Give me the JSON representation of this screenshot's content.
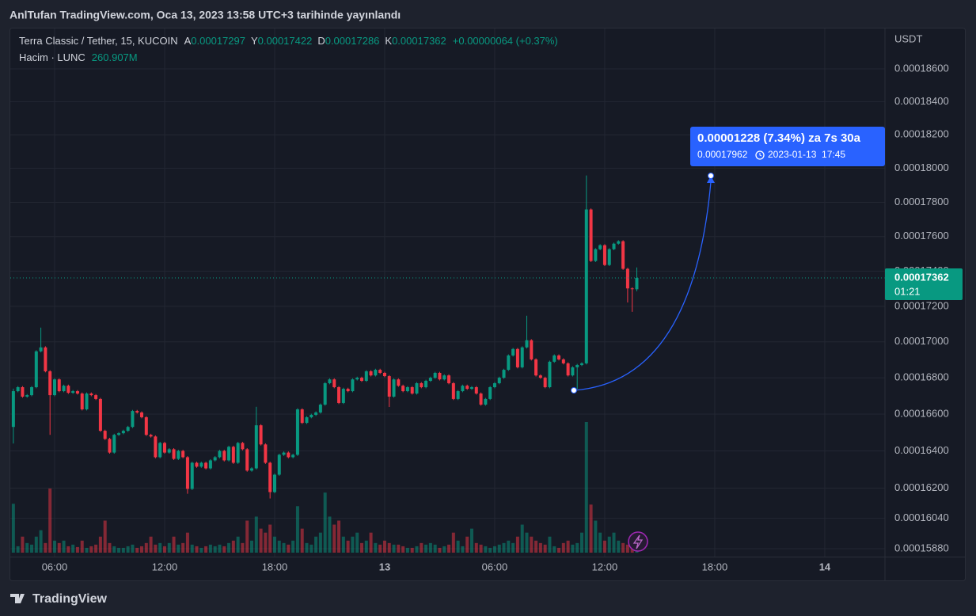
{
  "header": {
    "published": "AnlTufan TradingView.com, Oca 13, 2023 13:58 UTC+3 tarihinde yayınlandı"
  },
  "footer": {
    "logo": "TradingView"
  },
  "chart_data": {
    "type": "candlestick",
    "title": "Terra Classic / Tether, 15, KUCOIN",
    "ohlc_legend": [
      {
        "label": "A",
        "value": "0.00017297"
      },
      {
        "label": "Y",
        "value": "0.00017422"
      },
      {
        "label": "D",
        "value": "0.00017286"
      },
      {
        "label": "K",
        "value": "0.00017362"
      }
    ],
    "change": "+0.00000064 (+0.37%)",
    "volume_name": "Hacim · LUNC",
    "volume_value_label": "260.907M",
    "y_unit": "USDT",
    "price_label": {
      "value": "0.00017362",
      "countdown": "01:21"
    },
    "annotation": {
      "text": "0.00001228 (7.34%) za 7s 30a",
      "price": "0.00017962",
      "time": "2023-01-13  17:45"
    },
    "log_scale": true,
    "grid": true,
    "up_color": "#089981",
    "down_color": "#f23645",
    "annotation_color": "#2962ff",
    "xlim": [
      "2023-01-12 03:35",
      "2023-01-14 03:17"
    ],
    "xticks": [
      {
        "value": "2023-01-12 06:00",
        "label": "06:00"
      },
      {
        "value": "2023-01-12 12:00",
        "label": "12:00"
      },
      {
        "value": "2023-01-12 18:00",
        "label": "18:00"
      },
      {
        "value": "2023-01-13 00:00",
        "label": "13"
      },
      {
        "value": "2023-01-13 06:00",
        "label": "06:00"
      },
      {
        "value": "2023-01-13 12:00",
        "label": "12:00"
      },
      {
        "value": "2023-01-13 18:00",
        "label": "18:00"
      },
      {
        "value": "2023-01-14 00:00",
        "label": "14"
      }
    ],
    "ylim": [
      0.00015851,
      0.00018849
    ],
    "yticks": [
      {
        "value": 0.000186,
        "label": "0.00018600"
      },
      {
        "value": 0.000184,
        "label": "0.00018400"
      },
      {
        "value": 0.000182,
        "label": "0.00018200"
      },
      {
        "value": 0.00018,
        "label": "0.00018000"
      },
      {
        "value": 0.000178,
        "label": "0.00017800"
      },
      {
        "value": 0.000176,
        "label": "0.00017600"
      },
      {
        "value": 0.000174,
        "label": "0.00017400"
      },
      {
        "value": 0.000172,
        "label": "0.00017200"
      },
      {
        "value": 0.00017,
        "label": "0.00017000"
      },
      {
        "value": 0.000168,
        "label": "0.00016800"
      },
      {
        "value": 0.000166,
        "label": "0.00016600"
      },
      {
        "value": 0.000164,
        "label": "0.00016400"
      },
      {
        "value": 0.000162,
        "label": "0.00016200"
      },
      {
        "value": 0.0001604,
        "label": "0.00016040"
      },
      {
        "value": 0.0001588,
        "label": "0.00015880"
      }
    ],
    "x": [
      "2023-01-12 03:45",
      "2023-01-12 04:00",
      "2023-01-12 04:15",
      "2023-01-12 04:30",
      "2023-01-12 04:45",
      "2023-01-12 05:00",
      "2023-01-12 05:15",
      "2023-01-12 05:30",
      "2023-01-12 05:45",
      "2023-01-12 06:00",
      "2023-01-12 06:15",
      "2023-01-12 06:30",
      "2023-01-12 06:45",
      "2023-01-12 07:00",
      "2023-01-12 07:15",
      "2023-01-12 07:30",
      "2023-01-12 07:45",
      "2023-01-12 08:00",
      "2023-01-12 08:15",
      "2023-01-12 08:30",
      "2023-01-12 08:45",
      "2023-01-12 09:00",
      "2023-01-12 09:15",
      "2023-01-12 09:30",
      "2023-01-12 09:45",
      "2023-01-12 10:00",
      "2023-01-12 10:15",
      "2023-01-12 10:30",
      "2023-01-12 10:45",
      "2023-01-12 11:00",
      "2023-01-12 11:15",
      "2023-01-12 11:30",
      "2023-01-12 11:45",
      "2023-01-12 12:00",
      "2023-01-12 12:15",
      "2023-01-12 12:30",
      "2023-01-12 12:45",
      "2023-01-12 13:00",
      "2023-01-12 13:15",
      "2023-01-12 13:30",
      "2023-01-12 13:45",
      "2023-01-12 14:00",
      "2023-01-12 14:15",
      "2023-01-12 14:30",
      "2023-01-12 14:45",
      "2023-01-12 15:00",
      "2023-01-12 15:15",
      "2023-01-12 15:30",
      "2023-01-12 15:45",
      "2023-01-12 16:00",
      "2023-01-12 16:15",
      "2023-01-12 16:30",
      "2023-01-12 16:45",
      "2023-01-12 17:00",
      "2023-01-12 17:15",
      "2023-01-12 17:30",
      "2023-01-12 17:45",
      "2023-01-12 18:00",
      "2023-01-12 18:15",
      "2023-01-12 18:30",
      "2023-01-12 18:45",
      "2023-01-12 19:00",
      "2023-01-12 19:15",
      "2023-01-12 19:30",
      "2023-01-12 19:45",
      "2023-01-12 20:00",
      "2023-01-12 20:15",
      "2023-01-12 20:30",
      "2023-01-12 20:45",
      "2023-01-12 21:00",
      "2023-01-12 21:15",
      "2023-01-12 21:30",
      "2023-01-12 21:45",
      "2023-01-12 22:00",
      "2023-01-12 22:15",
      "2023-01-12 22:30",
      "2023-01-12 22:45",
      "2023-01-12 23:00",
      "2023-01-12 23:15",
      "2023-01-12 23:30",
      "2023-01-12 23:45",
      "2023-01-13 00:00",
      "2023-01-13 00:15",
      "2023-01-13 00:30",
      "2023-01-13 00:45",
      "2023-01-13 01:00",
      "2023-01-13 01:15",
      "2023-01-13 01:30",
      "2023-01-13 01:45",
      "2023-01-13 02:00",
      "2023-01-13 02:15",
      "2023-01-13 02:30",
      "2023-01-13 02:45",
      "2023-01-13 03:00",
      "2023-01-13 03:15",
      "2023-01-13 03:30",
      "2023-01-13 03:45",
      "2023-01-13 04:00",
      "2023-01-13 04:15",
      "2023-01-13 04:30",
      "2023-01-13 04:45",
      "2023-01-13 05:00",
      "2023-01-13 05:15",
      "2023-01-13 05:30",
      "2023-01-13 05:45",
      "2023-01-13 06:00",
      "2023-01-13 06:15",
      "2023-01-13 06:30",
      "2023-01-13 06:45",
      "2023-01-13 07:00",
      "2023-01-13 07:15",
      "2023-01-13 07:30",
      "2023-01-13 07:45",
      "2023-01-13 08:00",
      "2023-01-13 08:15",
      "2023-01-13 08:30",
      "2023-01-13 08:45",
      "2023-01-13 09:00",
      "2023-01-13 09:15",
      "2023-01-13 09:30",
      "2023-01-13 09:45",
      "2023-01-13 10:00",
      "2023-01-13 10:15",
      "2023-01-13 10:30",
      "2023-01-13 10:45",
      "2023-01-13 11:00",
      "2023-01-13 11:15",
      "2023-01-13 11:30",
      "2023-01-13 11:45",
      "2023-01-13 12:00",
      "2023-01-13 12:15",
      "2023-01-13 12:30",
      "2023-01-13 12:45",
      "2023-01-13 13:00",
      "2023-01-13 13:15",
      "2023-01-13 13:30",
      "2023-01-13 13:45"
    ],
    "open": [
      0.0001653,
      0.00016726,
      0.00016748,
      0.00016696,
      0.00016704,
      0.00016748,
      0.00016947,
      0.00016969,
      0.00016836,
      0.00016704,
      0.00016791,
      0.00016726,
      0.00016756,
      0.00016717,
      0.00016726,
      0.00016713,
      0.00016626,
      0.00016713,
      0.00016704,
      0.00016683,
      0.00016509,
      0.00016465,
      0.00016391,
      0.00016487,
      0.00016496,
      0.00016509,
      0.0001653,
      0.00016617,
      0.00016609,
      0.00016583,
      0.00016487,
      0.00016478,
      0.00016366,
      0.00016443,
      0.00016391,
      0.00016409,
      0.00016357,
      0.000164,
      0.00016366,
      0.00016196,
      0.00016336,
      0.00016315,
      0.00016336,
      0.00016306,
      0.00016349,
      0.00016366,
      0.000164,
      0.00016349,
      0.00016422,
      0.00016336,
      0.00016443,
      0.00016409,
      0.00016294,
      0.00016306,
      0.00016539,
      0.00016435,
      0.00016336,
      0.00016179,
      0.00016272,
      0.00016379,
      0.00016391,
      0.00016366,
      0.00016379,
      0.00016626,
      0.00016552,
      0.00016583,
      0.00016596,
      0.00016609,
      0.00016652,
      0.0001677,
      0.00016791,
      0.00016748,
      0.00016661,
      0.00016739,
      0.00016726,
      0.00016791,
      0.000168,
      0.00016783,
      0.00016836,
      0.00016813,
      0.00016844,
      0.00016827,
      0.00016809,
      0.00016696,
      0.00016791,
      0.00016756,
      0.00016726,
      0.00016748,
      0.00016713,
      0.0001677,
      0.00016748,
      0.00016783,
      0.000168,
      0.00016827,
      0.00016791,
      0.00016813,
      0.0001677,
      0.00016683,
      0.00016726,
      0.00016756,
      0.00016739,
      0.00016748,
      0.00016713,
      0.00016652,
      0.00016683,
      0.00016748,
      0.0001677,
      0.000168,
      0.00016844,
      0.00016924,
      0.0001696,
      0.00016858,
      0.00016969,
      0.00017009,
      0.00016902,
      0.00016813,
      0.000168,
      0.00016748,
      0.00016889,
      0.00016924,
      0.00016902,
      0.0001688,
      0.00016813,
      0.00016858,
      0.00016871,
      0.0001688,
      0.00017758,
      0.00017459,
      0.00017527,
      0.0001755,
      0.00017436,
      0.00017527,
      0.00017559,
      0.00017573,
      0.00017414,
      0.00017302,
      0.00017297
    ],
    "high": [
      0.0001674,
      0.00016754,
      0.00016754,
      0.0001671,
      0.00016754,
      0.00016953,
      0.0001708,
      0.00016975,
      0.00016842,
      0.00016797,
      0.00016797,
      0.00016762,
      0.00016762,
      0.00016732,
      0.00016732,
      0.00016719,
      0.00016719,
      0.00016719,
      0.0001671,
      0.00016689,
      0.00016515,
      0.00016471,
      0.00016493,
      0.00016502,
      0.00016515,
      0.00016536,
      0.00016623,
      0.00016623,
      0.00016615,
      0.00016589,
      0.00016493,
      0.00016484,
      0.00016449,
      0.00016449,
      0.00016415,
      0.00016415,
      0.00016406,
      0.00016406,
      0.00016372,
      0.00016342,
      0.00016342,
      0.00016342,
      0.00016342,
      0.00016355,
      0.00016372,
      0.00016406,
      0.00016406,
      0.00016428,
      0.00016428,
      0.00016449,
      0.00016449,
      0.00016415,
      0.00016312,
      0.0001664,
      0.00016545,
      0.00016441,
      0.00016342,
      0.00016278,
      0.00016385,
      0.00016397,
      0.00016397,
      0.00016385,
      0.00016632,
      0.00016632,
      0.00016589,
      0.00016602,
      0.00016615,
      0.00016658,
      0.00016776,
      0.00016797,
      0.00016797,
      0.00016754,
      0.00016745,
      0.00016745,
      0.00016797,
      0.00016806,
      0.00016806,
      0.00016842,
      0.00016842,
      0.0001685,
      0.0001685,
      0.00016833,
      0.00016815,
      0.00016797,
      0.00016797,
      0.00016762,
      0.00016754,
      0.00016754,
      0.00016776,
      0.00016776,
      0.00016789,
      0.00016806,
      0.00016833,
      0.00016833,
      0.00016819,
      0.00016819,
      0.00016776,
      0.00016732,
      0.00016762,
      0.00016762,
      0.00016754,
      0.00016754,
      0.00016719,
      0.00016689,
      0.00016754,
      0.00016776,
      0.00016806,
      0.0001685,
      0.0001693,
      0.00016966,
      0.00016966,
      0.00016975,
      0.00017147,
      0.00017015,
      0.00016908,
      0.00016819,
      0.00016806,
      0.00016895,
      0.0001693,
      0.0001693,
      0.00016908,
      0.00016886,
      0.00016864,
      0.00016877,
      0.00016886,
      0.00017958,
      0.00017764,
      0.00017533,
      0.00017556,
      0.00017556,
      0.00017533,
      0.00017565,
      0.00017579,
      0.00017579,
      0.0001742,
      0.00017308,
      0.00017422
    ],
    "low": [
      0.0001644,
      0.0001672,
      0.0001669,
      0.0001669,
      0.00016698,
      0.00016742,
      0.00016941,
      0.0001683,
      0.00016487,
      0.00016698,
      0.0001672,
      0.0001672,
      0.00016711,
      0.00016711,
      0.00016707,
      0.0001662,
      0.0001662,
      0.00016698,
      0.00016677,
      0.00016503,
      0.00016459,
      0.00016385,
      0.00016385,
      0.00016481,
      0.0001649,
      0.00016503,
      0.00016524,
      0.00016603,
      0.00016577,
      0.00016481,
      0.00016472,
      0.0001636,
      0.0001636,
      0.00016385,
      0.00016385,
      0.00016351,
      0.00016351,
      0.0001636,
      0.0001617,
      0.0001619,
      0.00016309,
      0.00016309,
      0.000163,
      0.000163,
      0.00016343,
      0.0001636,
      0.00016343,
      0.00016343,
      0.0001633,
      0.0001633,
      0.00016403,
      0.00016288,
      0.00016288,
      0.000163,
      0.00016429,
      0.0001633,
      0.00016145,
      0.00016173,
      0.00016266,
      0.00016373,
      0.0001636,
      0.0001636,
      0.00016373,
      0.00016546,
      0.00016546,
      0.00016577,
      0.0001659,
      0.00016603,
      0.00016646,
      0.00016764,
      0.00016742,
      0.00016655,
      0.00016655,
      0.0001672,
      0.0001672,
      0.00016785,
      0.00016777,
      0.00016777,
      0.00016807,
      0.00016807,
      0.00016821,
      0.00016803,
      0.00016639,
      0.0001669,
      0.0001675,
      0.0001672,
      0.0001672,
      0.00016707,
      0.00016707,
      0.00016742,
      0.00016742,
      0.00016777,
      0.00016794,
      0.00016785,
      0.00016785,
      0.00016764,
      0.00016677,
      0.00016677,
      0.0001672,
      0.00016733,
      0.00016733,
      0.00016707,
      0.00016646,
      0.00016646,
      0.00016677,
      0.00016742,
      0.00016764,
      0.00016794,
      0.00016838,
      0.00016918,
      0.00016852,
      0.00016852,
      0.00016963,
      0.00016896,
      0.00016807,
      0.00016794,
      0.00016742,
      0.00016742,
      0.00016883,
      0.00016896,
      0.00016874,
      0.00016807,
      0.00016807,
      0.00016739,
      0.00016865,
      0.00016874,
      0.00017453,
      0.00017453,
      0.00017521,
      0.0001743,
      0.0001743,
      0.00017521,
      0.00017553,
      0.00017408,
      0.00017222,
      0.00017169,
      0.00017286
    ],
    "close": [
      0.00016726,
      0.00016748,
      0.00016696,
      0.00016704,
      0.00016748,
      0.00016947,
      0.00016969,
      0.00016836,
      0.00016704,
      0.00016791,
      0.00016726,
      0.00016756,
      0.00016717,
      0.00016726,
      0.00016713,
      0.00016626,
      0.00016713,
      0.00016704,
      0.00016683,
      0.00016509,
      0.00016465,
      0.00016391,
      0.00016487,
      0.00016496,
      0.00016509,
      0.0001653,
      0.00016617,
      0.00016609,
      0.00016583,
      0.00016487,
      0.00016478,
      0.00016366,
      0.00016443,
      0.00016391,
      0.00016409,
      0.00016357,
      0.000164,
      0.00016366,
      0.00016196,
      0.00016336,
      0.00016315,
      0.00016336,
      0.00016306,
      0.00016349,
      0.00016366,
      0.000164,
      0.00016349,
      0.00016422,
      0.00016336,
      0.00016443,
      0.00016409,
      0.00016294,
      0.00016306,
      0.00016539,
      0.00016435,
      0.00016336,
      0.00016179,
      0.00016272,
      0.00016379,
      0.00016391,
      0.00016366,
      0.00016379,
      0.00016626,
      0.00016552,
      0.00016583,
      0.00016596,
      0.00016609,
      0.00016652,
      0.0001677,
      0.00016791,
      0.00016748,
      0.00016661,
      0.00016739,
      0.00016726,
      0.00016791,
      0.000168,
      0.00016783,
      0.00016836,
      0.00016813,
      0.00016844,
      0.00016827,
      0.00016809,
      0.00016696,
      0.00016791,
      0.00016756,
      0.00016726,
      0.00016748,
      0.00016713,
      0.0001677,
      0.00016748,
      0.00016783,
      0.000168,
      0.00016827,
      0.00016791,
      0.00016813,
      0.0001677,
      0.00016683,
      0.00016726,
      0.00016756,
      0.00016739,
      0.00016748,
      0.00016713,
      0.00016652,
      0.00016683,
      0.00016748,
      0.0001677,
      0.000168,
      0.00016844,
      0.00016924,
      0.0001696,
      0.00016858,
      0.00016969,
      0.00017009,
      0.00016902,
      0.00016813,
      0.000168,
      0.00016748,
      0.00016889,
      0.00016924,
      0.00016902,
      0.0001688,
      0.00016813,
      0.00016858,
      0.00016871,
      0.0001688,
      0.00017758,
      0.00017459,
      0.00017527,
      0.0001755,
      0.00017436,
      0.00017527,
      0.00017559,
      0.00017573,
      0.00017414,
      0.00017302,
      0.00017298,
      0.00017362
    ],
    "volume": [
      1586,
      208,
      520,
      312,
      260,
      520,
      728,
      312,
      2080,
      390,
      312,
      390,
      208,
      260,
      182,
      390,
      156,
      208,
      260,
      520,
      1040,
      312,
      208,
      156,
      156,
      208,
      260,
      156,
      208,
      312,
      520,
      260,
      312,
      208,
      312,
      520,
      260,
      312,
      650,
      260,
      208,
      156,
      208,
      260,
      208,
      260,
      208,
      312,
      390,
      520,
      312,
      1040,
      390,
      1170,
      780,
      650,
      910,
      520,
      390,
      312,
      260,
      390,
      1508,
      780,
      312,
      260,
      520,
      650,
      1950,
      1170,
      910,
      1040,
      520,
      390,
      520,
      650,
      312,
      390,
      650,
      312,
      260,
      390,
      312,
      260,
      260,
      208,
      156,
      156,
      208,
      312,
      260,
      312,
      260,
      156,
      208,
      260,
      650,
      390,
      208,
      520,
      780,
      312,
      260,
      208,
      156,
      208,
      260,
      312,
      390,
      312,
      520,
      910,
      650,
      520,
      390,
      312,
      260,
      520,
      208,
      156,
      312,
      390,
      260,
      312,
      650,
      4238,
      1560,
      1040,
      650,
      390,
      520,
      650,
      390,
      312,
      260,
      390,
      260.907
    ]
  }
}
